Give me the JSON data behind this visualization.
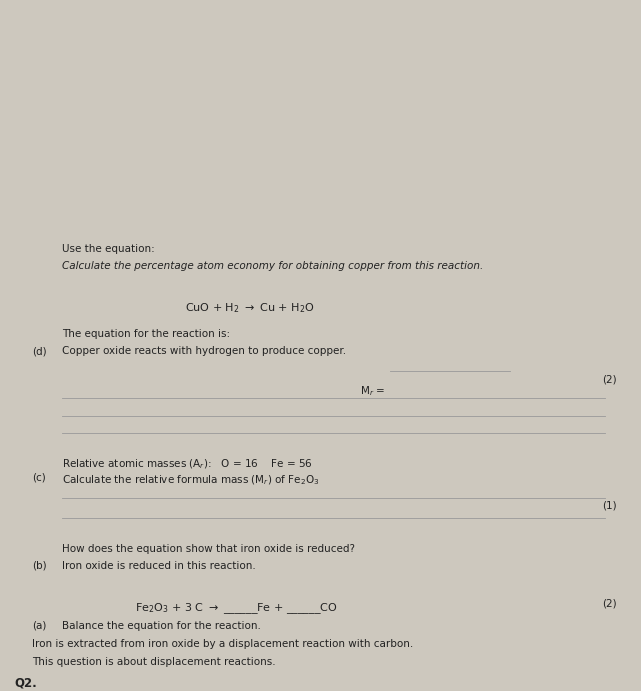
{
  "bg_color": "#cdc8be",
  "text_color": "#222222",
  "line_color": "#999999",
  "q_number": "Q2.",
  "intro1": "This question is about displacement reactions.",
  "intro2": "Iron is extracted from iron oxide by a displacement reaction with carbon.",
  "part_a_label": "(a)",
  "part_a_text": "Balance the equation for the reaction.",
  "marks_a": "(2)",
  "part_b_label": "(b)",
  "part_b_text1": "Iron oxide is reduced in this reaction.",
  "part_b_text2": "How does the equation show that iron oxide is reduced?",
  "marks_b": "(1)",
  "part_c_label": "(c)",
  "part_c_text": "Calculate the relative formula mass (M",
  "part_c_text2": ") of Fe",
  "part_c_sub2": "Relative atomic masses (A",
  "part_c_sub3": "):   O = 16    Fe = 56",
  "marks_c": "(2)",
  "part_d_label": "(d)",
  "part_d_text1": "Copper oxide reacts with hydrogen to produce copper.",
  "part_d_text2": "The equation for the reaction is:",
  "part_d_italic": "Calculate the percentage atom economy for obtaining copper from this reaction.",
  "part_d_use": "Use the equation:"
}
